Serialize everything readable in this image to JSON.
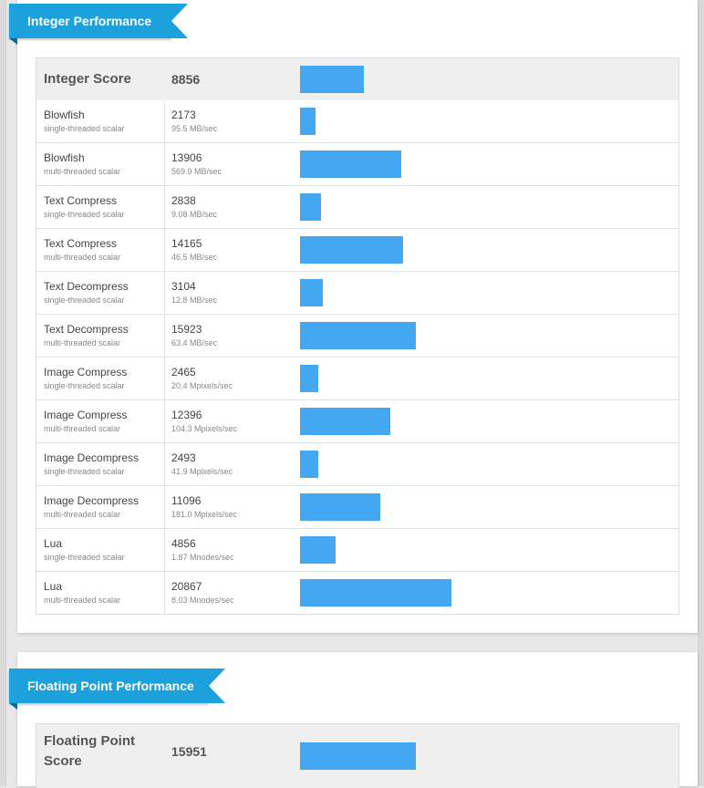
{
  "colors": {
    "ribbon": "#1da1dd",
    "bar": "#44a7f2",
    "header_row": "#efefef"
  },
  "integer_section": {
    "title": "Integer Performance",
    "header": {
      "label": "Integer Score",
      "score": "8856",
      "value": 8856
    },
    "rows": [
      {
        "name": "Blowfish",
        "mode": "single-threaded scalar",
        "score": "2173",
        "rate": "95.5 MB/sec",
        "value": 2173
      },
      {
        "name": "Blowfish",
        "mode": "multi-threaded scalar",
        "score": "13906",
        "rate": "569.9 MB/sec",
        "value": 13906
      },
      {
        "name": "Text Compress",
        "mode": "single-threaded scalar",
        "score": "2838",
        "rate": "9.08 MB/sec",
        "value": 2838
      },
      {
        "name": "Text Compress",
        "mode": "multi-threaded scalar",
        "score": "14165",
        "rate": "46.5 MB/sec",
        "value": 14165
      },
      {
        "name": "Text Decompress",
        "mode": "single-threaded scalar",
        "score": "3104",
        "rate": "12.8 MB/sec",
        "value": 3104
      },
      {
        "name": "Text Decompress",
        "mode": "multi-threaded scalar",
        "score": "15923",
        "rate": "63.4 MB/sec",
        "value": 15923
      },
      {
        "name": "Image Compress",
        "mode": "single-threaded scalar",
        "score": "2465",
        "rate": "20.4 Mpixels/sec",
        "value": 2465
      },
      {
        "name": "Image Compress",
        "mode": "multi-threaded scalar",
        "score": "12396",
        "rate": "104.3 Mpixels/sec",
        "value": 12396
      },
      {
        "name": "Image Decompress",
        "mode": "single-threaded scalar",
        "score": "2493",
        "rate": "41.9 Mpixels/sec",
        "value": 2493
      },
      {
        "name": "Image Decompress",
        "mode": "multi-threaded scalar",
        "score": "11096",
        "rate": "181.0 Mpixels/sec",
        "value": 11096
      },
      {
        "name": "Lua",
        "mode": "single-threaded scalar",
        "score": "4856",
        "rate": "1.87 Mnodes/sec",
        "value": 4856
      },
      {
        "name": "Lua",
        "mode": "multi-threaded scalar",
        "score": "20867",
        "rate": "8.03 Mnodes/sec",
        "value": 20867
      }
    ]
  },
  "float_section": {
    "title": "Floating Point Performance",
    "header": {
      "label": "Floating Point Score",
      "score": "15951",
      "value": 15951
    }
  }
}
